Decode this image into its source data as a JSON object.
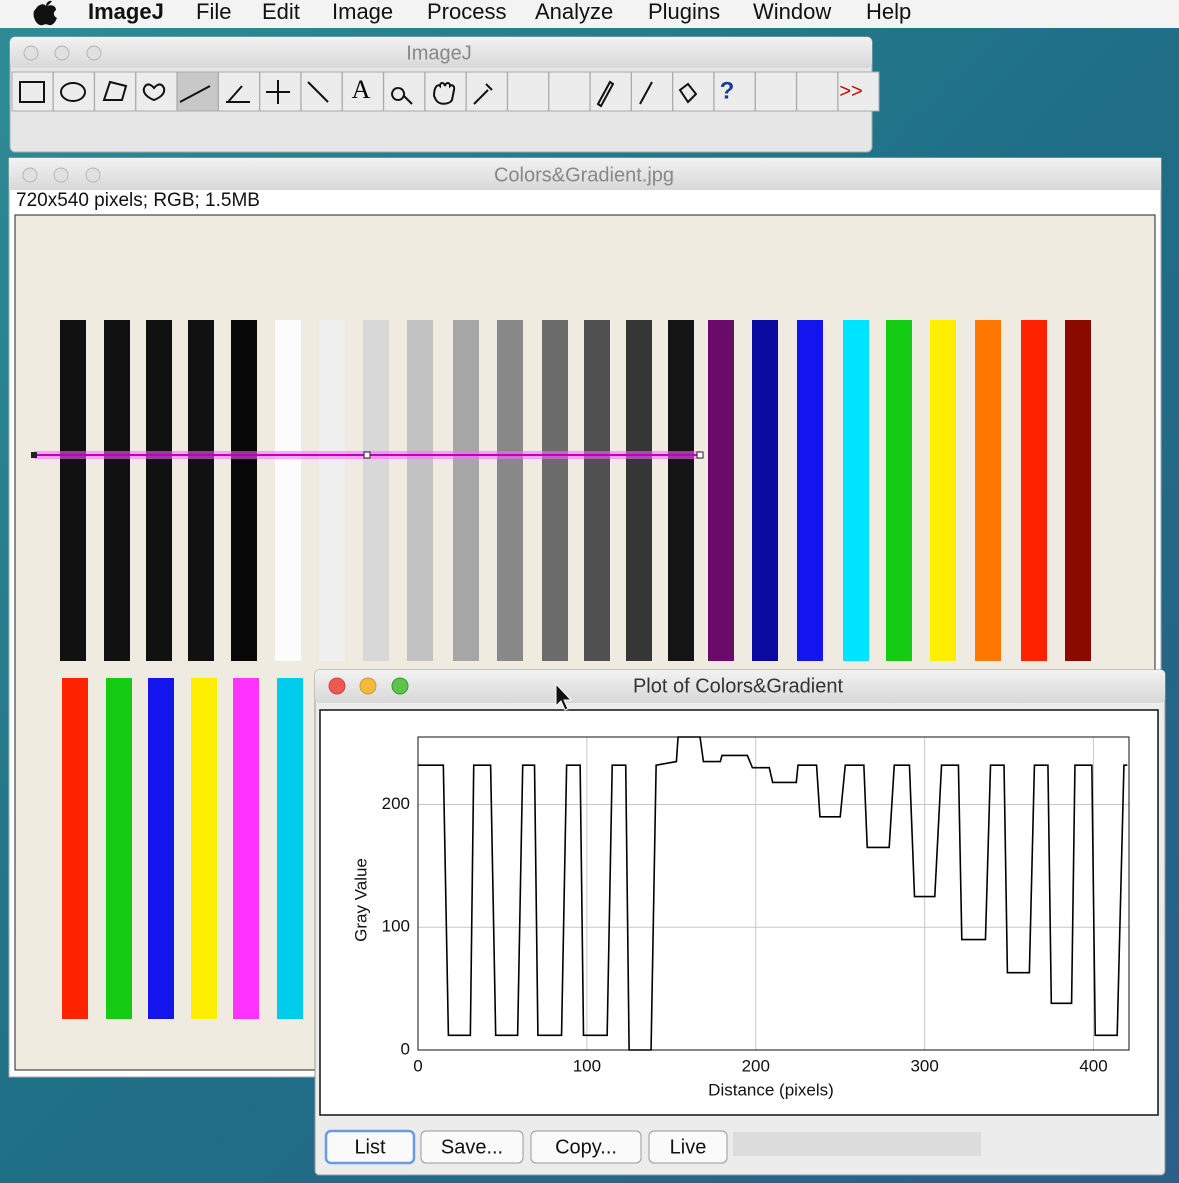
{
  "menu_bar": {
    "app": "ImageJ",
    "items": [
      "File",
      "Edit",
      "Image",
      "Process",
      "Analyze",
      "Plugins",
      "Window",
      "Help"
    ]
  },
  "toolbar_window": {
    "title": "ImageJ",
    "glyphs": [
      "A",
      "?",
      ">>"
    ]
  },
  "image_window": {
    "title": "Colors&Gradient.jpg",
    "info": "720x540 pixels; RGB; 1.5MB"
  },
  "plot_window": {
    "title": "Plot of Colors&Gradient",
    "buttons": [
      "List",
      "Save...",
      "Copy...",
      "Live"
    ]
  },
  "chart_data": {
    "type": "line",
    "x_label": "Distance (pixels)",
    "y_label": "Gray Value",
    "x": [
      0,
      15,
      18,
      31,
      33,
      43,
      46,
      59,
      62,
      69,
      71,
      85,
      88,
      96,
      98,
      112,
      115,
      123,
      125,
      138,
      141,
      153,
      154,
      167,
      169,
      179,
      180,
      195,
      198,
      208,
      210,
      224,
      225,
      236,
      238,
      250,
      253,
      264,
      266,
      279,
      282,
      291,
      294,
      306,
      310,
      320,
      322,
      336,
      339,
      347,
      349,
      362,
      365,
      373,
      375,
      387,
      389,
      399,
      401,
      414,
      418,
      420
    ],
    "series": [
      {
        "color": "#000000",
        "values": [
          232,
          232,
          12,
          12,
          232,
          232,
          12,
          12,
          232,
          232,
          12,
          12,
          232,
          232,
          12,
          12,
          232,
          232,
          0,
          0,
          232,
          235,
          255,
          255,
          235,
          235,
          240,
          240,
          230,
          230,
          218,
          218,
          232,
          232,
          190,
          190,
          232,
          232,
          165,
          165,
          232,
          232,
          125,
          125,
          232,
          232,
          90,
          90,
          232,
          232,
          63,
          63,
          232,
          232,
          38,
          38,
          232,
          232,
          12,
          12,
          232,
          232
        ]
      }
    ],
    "xlim": [
      0,
      421
    ],
    "ylim": [
      0,
      255
    ],
    "xticks": [
      0,
      100,
      200,
      300,
      400
    ],
    "yticks": [
      0,
      100,
      200
    ],
    "grid": true
  }
}
